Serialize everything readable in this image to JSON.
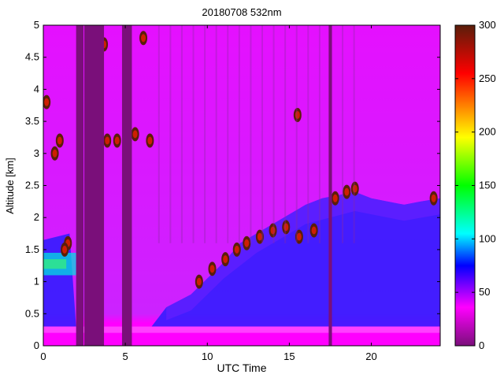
{
  "chart_data": {
    "type": "heatmap",
    "title": "20180708 532nm",
    "xlabel": "UTC Time",
    "ylabel": "Altitude [km]",
    "xlim": [
      0,
      24.2
    ],
    "ylim": [
      0,
      5
    ],
    "x_ticks": [
      0,
      5,
      10,
      15,
      20
    ],
    "x_tick_labels": [
      "0",
      "5",
      "10",
      "15",
      "20"
    ],
    "y_ticks": [
      0,
      0.5,
      1,
      1.5,
      2,
      2.5,
      3,
      3.5,
      4,
      4.5,
      5
    ],
    "y_tick_labels": [
      "0",
      "0.5",
      "1",
      "1.5",
      "2",
      "2.5",
      "3",
      "3.5",
      "4",
      "4.5",
      "5"
    ],
    "colorbar": {
      "range": [
        0,
        300
      ],
      "ticks": [
        0,
        50,
        100,
        150,
        200,
        250,
        300
      ],
      "tick_labels": [
        "0",
        "50",
        "100",
        "150",
        "200",
        "250",
        "300"
      ],
      "colors": [
        "#7a0f7a",
        "#ff00ff",
        "#0000ff",
        "#00ffff",
        "#00ff00",
        "#ffff00",
        "#ff8000",
        "#ff0000",
        "#5a1e0a"
      ]
    },
    "no_data_color": "#7a0f7a",
    "no_data_intervals_utc": [
      [
        2.0,
        2.45
      ],
      [
        2.5,
        3.7
      ],
      [
        4.8,
        5.4
      ],
      [
        17.4,
        17.6
      ]
    ],
    "grid": false,
    "legend": "none"
  }
}
